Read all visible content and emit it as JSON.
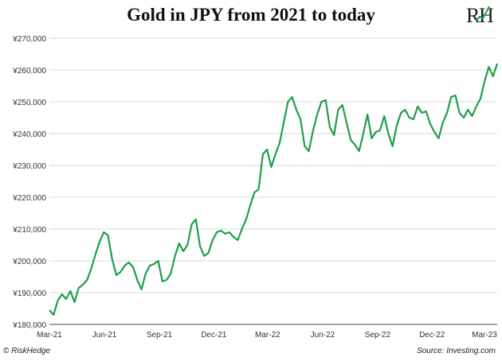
{
  "chart_data": {
    "type": "line",
    "title": "Gold in JPY from 2021 to today",
    "xlabel": "",
    "ylabel": "",
    "ylim": [
      180000,
      270000
    ],
    "yticks": [
      180000,
      190000,
      200000,
      210000,
      220000,
      230000,
      240000,
      250000,
      260000,
      270000
    ],
    "ytick_labels": [
      "¥180,000",
      "¥190,000",
      "¥200,000",
      "¥210,000",
      "¥220,000",
      "¥230,000",
      "¥240,000",
      "¥250,000",
      "¥260,000",
      "¥270,000"
    ],
    "xtick_labels": [
      "Mar-21",
      "Jun-21",
      "Sep-21",
      "Dec-21",
      "Mar-22",
      "Jun-22",
      "Sep-22",
      "Dec-22",
      "Mar-23"
    ],
    "xlim": [
      "2021-03-01",
      "2023-03-20"
    ],
    "grid": "horizontal",
    "line_color": "#1e9e4a",
    "series": [
      {
        "name": "",
        "x": [
          "2021-03-01",
          "2021-03-08",
          "2021-03-15",
          "2021-03-22",
          "2021-03-29",
          "2021-04-05",
          "2021-04-12",
          "2021-04-19",
          "2021-04-26",
          "2021-05-03",
          "2021-05-10",
          "2021-05-17",
          "2021-05-24",
          "2021-05-31",
          "2021-06-07",
          "2021-06-14",
          "2021-06-21",
          "2021-06-28",
          "2021-07-05",
          "2021-07-12",
          "2021-07-19",
          "2021-07-26",
          "2021-08-02",
          "2021-08-09",
          "2021-08-16",
          "2021-08-23",
          "2021-08-30",
          "2021-09-06",
          "2021-09-13",
          "2021-09-20",
          "2021-09-27",
          "2021-10-04",
          "2021-10-11",
          "2021-10-18",
          "2021-10-25",
          "2021-11-01",
          "2021-11-08",
          "2021-11-15",
          "2021-11-22",
          "2021-11-29",
          "2021-12-06",
          "2021-12-13",
          "2021-12-20",
          "2021-12-27",
          "2022-01-03",
          "2022-01-10",
          "2022-01-17",
          "2022-01-24",
          "2022-01-31",
          "2022-02-07",
          "2022-02-14",
          "2022-02-21",
          "2022-02-28",
          "2022-03-07",
          "2022-03-14",
          "2022-03-21",
          "2022-03-28",
          "2022-04-04",
          "2022-04-11",
          "2022-04-18",
          "2022-04-25",
          "2022-05-02",
          "2022-05-09",
          "2022-05-16",
          "2022-05-23",
          "2022-05-30",
          "2022-06-06",
          "2022-06-13",
          "2022-06-20",
          "2022-06-27",
          "2022-07-04",
          "2022-07-11",
          "2022-07-18",
          "2022-07-25",
          "2022-08-01",
          "2022-08-08",
          "2022-08-15",
          "2022-08-22",
          "2022-08-29",
          "2022-09-05",
          "2022-09-12",
          "2022-09-19",
          "2022-09-26",
          "2022-10-03",
          "2022-10-10",
          "2022-10-17",
          "2022-10-24",
          "2022-10-31",
          "2022-11-07",
          "2022-11-14",
          "2022-11-21",
          "2022-11-28",
          "2022-12-05",
          "2022-12-12",
          "2022-12-19",
          "2022-12-26",
          "2023-01-02",
          "2023-01-09",
          "2023-01-16",
          "2023-01-23",
          "2023-01-30",
          "2023-02-06",
          "2023-02-13",
          "2023-02-20",
          "2023-02-27",
          "2023-03-06",
          "2023-03-13",
          "2023-03-20"
        ],
        "values": [
          184500,
          183000,
          187500,
          189500,
          188000,
          190500,
          187000,
          191500,
          192500,
          194000,
          197500,
          202000,
          206000,
          209000,
          208000,
          200500,
          195500,
          196500,
          198500,
          199500,
          198000,
          194000,
          191000,
          196000,
          198500,
          199000,
          200000,
          193500,
          194000,
          196000,
          201500,
          205500,
          203000,
          205000,
          211500,
          213000,
          204500,
          201500,
          202500,
          206500,
          209000,
          209500,
          208500,
          209000,
          207500,
          206500,
          210000,
          213000,
          217500,
          221500,
          222500,
          233500,
          235000,
          229500,
          233500,
          237000,
          243500,
          250000,
          251500,
          247500,
          244500,
          236000,
          234500,
          241000,
          246000,
          250000,
          250500,
          242000,
          239500,
          247500,
          249000,
          243500,
          238000,
          236500,
          234500,
          240000,
          246000,
          238500,
          240500,
          241000,
          245500,
          240000,
          236000,
          242500,
          246500,
          247500,
          245000,
          244500,
          248500,
          246500,
          247000,
          243000,
          240500,
          238500,
          243500,
          246500,
          251500,
          252000,
          246500,
          245000,
          247500,
          245500,
          248500,
          251000,
          256500,
          261000,
          258000,
          262000
        ]
      }
    ]
  },
  "footer": {
    "left": "© RiskHedge",
    "right": "Source: Investing.com"
  },
  "logo": {
    "text": "RH",
    "color": "#1e9e4a"
  }
}
